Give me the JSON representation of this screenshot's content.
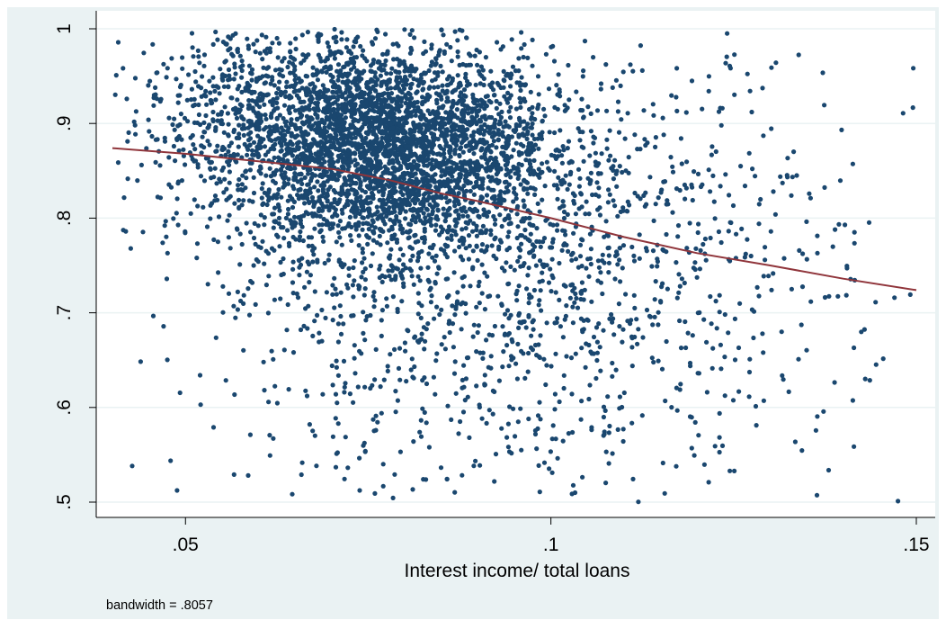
{
  "chart_data": {
    "type": "scatter",
    "title": "",
    "xlabel": "Interest income/ total loans",
    "ylabel": "",
    "note": "bandwidth = .8057",
    "xlim": [
      0.04,
      0.15
    ],
    "ylim": [
      0.5,
      1.0
    ],
    "x_ticks": [
      {
        "value": 0.05,
        "label": ".05"
      },
      {
        "value": 0.1,
        "label": ".1"
      },
      {
        "value": 0.15,
        "label": ".15"
      }
    ],
    "y_ticks": [
      {
        "value": 0.5,
        "label": ".5"
      },
      {
        "value": 0.6,
        "label": ".6"
      },
      {
        "value": 0.7,
        "label": ".7"
      },
      {
        "value": 0.8,
        "label": ".8"
      },
      {
        "value": 0.9,
        "label": ".9"
      },
      {
        "value": 1.0,
        "label": "1"
      }
    ],
    "grid": "horizontal",
    "colors": {
      "outer_background": "#eaf2f3",
      "plot_background": "#ffffff",
      "grid": "#eaf2f3",
      "points": "#1a476f",
      "smooth_line": "#90353b"
    },
    "series": [
      {
        "kind": "scatter",
        "point_count_estimate": 5200,
        "clusters": [
          {
            "x_mean": 0.078,
            "y_mean": 0.87,
            "x_sd": 0.011,
            "y_sd": 0.055,
            "weight": 0.55
          },
          {
            "x_mean": 0.065,
            "y_mean": 0.91,
            "x_sd": 0.012,
            "y_sd": 0.05,
            "weight": 0.15
          },
          {
            "x_mean": 0.095,
            "y_mean": 0.75,
            "x_sd": 0.022,
            "y_sd": 0.12,
            "weight": 0.3
          }
        ]
      },
      {
        "kind": "lowess",
        "x": [
          0.04,
          0.05,
          0.06,
          0.07,
          0.078,
          0.085,
          0.09,
          0.1,
          0.11,
          0.12,
          0.13,
          0.14,
          0.15
        ],
        "y": [
          0.874,
          0.868,
          0.86,
          0.852,
          0.84,
          0.826,
          0.818,
          0.8,
          0.78,
          0.763,
          0.75,
          0.736,
          0.724
        ]
      }
    ]
  }
}
